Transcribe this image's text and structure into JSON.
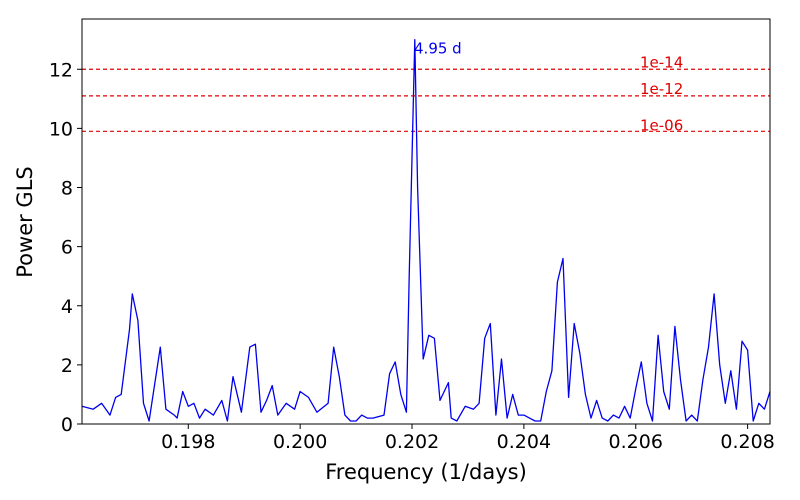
{
  "chart_data": {
    "type": "line",
    "xlabel": "Frequency (1/days)",
    "ylabel": "Power GLS",
    "xlim": [
      0.1961,
      0.2084
    ],
    "ylim": [
      0,
      13.7
    ],
    "xticks": [
      0.198,
      0.2,
      0.202,
      0.204,
      0.206,
      0.208
    ],
    "xtick_labels": [
      "0.198",
      "0.200",
      "0.202",
      "0.204",
      "0.206",
      "0.208"
    ],
    "yticks": [
      0,
      2,
      4,
      6,
      8,
      10,
      12
    ],
    "ytick_labels": [
      "0",
      "2",
      "4",
      "6",
      "8",
      "10",
      "12"
    ],
    "grid": false,
    "series": [
      {
        "color": "#0000ee",
        "x": [
          0.1961,
          0.1963,
          0.19645,
          0.1966,
          0.1967,
          0.1968,
          0.19695,
          0.197,
          0.1971,
          0.1972,
          0.1973,
          0.1975,
          0.1976,
          0.19775,
          0.1978,
          0.1979,
          0.198,
          0.1981,
          0.1982,
          0.1983,
          0.19845,
          0.1986,
          0.1987,
          0.1988,
          0.19895,
          0.1991,
          0.1992,
          0.1993,
          0.1994,
          0.1995,
          0.1996,
          0.19975,
          0.1999,
          0.2,
          0.20015,
          0.2003,
          0.2005,
          0.2006,
          0.2007,
          0.2008,
          0.2009,
          0.201,
          0.2011,
          0.2012,
          0.2013,
          0.2015,
          0.2016,
          0.2017,
          0.2018,
          0.2019,
          0.20195,
          0.20205,
          0.2021,
          0.2022,
          0.2023,
          0.2024,
          0.2025,
          0.20265,
          0.2027,
          0.2028,
          0.20295,
          0.2031,
          0.2032,
          0.2033,
          0.2034,
          0.2035,
          0.2036,
          0.2037,
          0.2038,
          0.2039,
          0.204,
          0.2041,
          0.2042,
          0.2043,
          0.2044,
          0.2045,
          0.2046,
          0.2047,
          0.2048,
          0.2049,
          0.205,
          0.2051,
          0.2052,
          0.2053,
          0.2054,
          0.2055,
          0.2056,
          0.2057,
          0.2058,
          0.2059,
          0.206,
          0.2061,
          0.2062,
          0.2063,
          0.2064,
          0.2065,
          0.2066,
          0.2067,
          0.2068,
          0.2069,
          0.207,
          0.2071,
          0.2072,
          0.2073,
          0.2074,
          0.2075,
          0.2076,
          0.2077,
          0.2078,
          0.2079,
          0.208,
          0.2081,
          0.2082,
          0.2083,
          0.2084
        ],
        "y": [
          0.6,
          0.5,
          0.7,
          0.3,
          0.9,
          1.0,
          3.2,
          4.4,
          3.5,
          0.7,
          0.1,
          2.6,
          0.5,
          0.3,
          0.2,
          1.1,
          0.6,
          0.7,
          0.2,
          0.5,
          0.3,
          0.8,
          0.1,
          1.6,
          0.4,
          2.6,
          2.7,
          0.4,
          0.8,
          1.3,
          0.3,
          0.7,
          0.5,
          1.1,
          0.9,
          0.4,
          0.7,
          2.6,
          1.6,
          0.3,
          0.1,
          0.1,
          0.3,
          0.2,
          0.2,
          0.3,
          1.7,
          2.1,
          1.0,
          0.4,
          5.0,
          13.0,
          8.0,
          2.2,
          3.0,
          2.9,
          0.8,
          1.4,
          0.2,
          0.1,
          0.6,
          0.5,
          0.7,
          2.9,
          3.4,
          0.3,
          2.2,
          0.2,
          1.0,
          0.3,
          0.3,
          0.2,
          0.1,
          0.1,
          1.1,
          1.8,
          4.8,
          5.6,
          0.9,
          3.4,
          2.4,
          1.0,
          0.2,
          0.8,
          0.2,
          0.1,
          0.3,
          0.2,
          0.6,
          0.2,
          1.2,
          2.1,
          0.7,
          0.1,
          3.0,
          1.1,
          0.5,
          3.3,
          1.5,
          0.1,
          0.3,
          0.1,
          1.5,
          2.6,
          4.4,
          2.0,
          0.7,
          1.8,
          0.5,
          2.8,
          2.5,
          0.1,
          0.7,
          0.5,
          1.1
        ]
      }
    ],
    "thresholds": [
      {
        "value": 12.0,
        "label": "1e-14",
        "color": "#e00000"
      },
      {
        "value": 11.1,
        "label": "1e-12",
        "color": "#e00000"
      },
      {
        "value": 9.9,
        "label": "1e-06",
        "color": "#e00000"
      }
    ],
    "annotation": {
      "text": "4.95 d",
      "x": 0.202,
      "y": 13.0,
      "color": "#0000ee"
    }
  }
}
